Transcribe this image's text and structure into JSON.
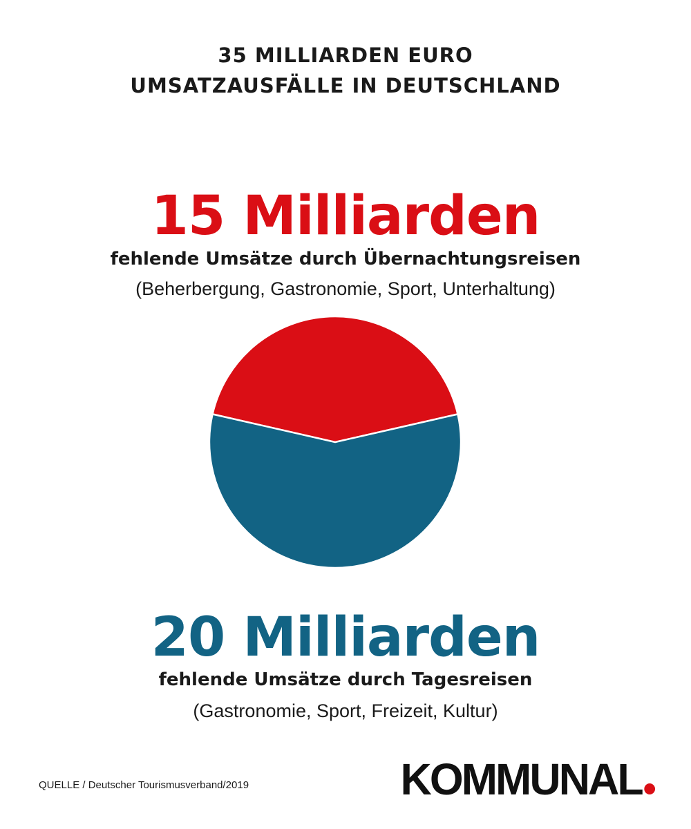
{
  "header": {
    "line1": "35 MILLIARDEN EURO",
    "line2": "UMSATZAUSFÄLLE IN DEUTSCHLAND"
  },
  "segments": {
    "overnight": {
      "amount_label": "15 Milliarden",
      "description": "fehlende Umsätze durch Übernachtungsreisen",
      "detail": "(Beherbergung, Gastronomie, Sport, Unterhaltung)"
    },
    "daytrips": {
      "amount_label": "20 Milliarden",
      "description": "fehlende Umsätze durch Tagesreisen",
      "detail": "(Gastronomie, Sport, Freizeit, Kultur)"
    }
  },
  "footer": {
    "source": "QUELLE / Deutscher Tourismusverband/2019",
    "logo": "KOMMUNAL"
  },
  "colors": {
    "red": "#da0e15",
    "blue": "#126384",
    "separator": "#ffffff"
  },
  "chart_data": {
    "type": "pie",
    "categories": [
      "Übernachtungsreisen",
      "Tagesreisen"
    ],
    "values": [
      15,
      20
    ],
    "colors": [
      "#da0e15",
      "#126384"
    ],
    "title": "35 MILLIARDEN EURO UMSATZAUSFÄLLE IN DEUTSCHLAND",
    "legend": "none"
  }
}
